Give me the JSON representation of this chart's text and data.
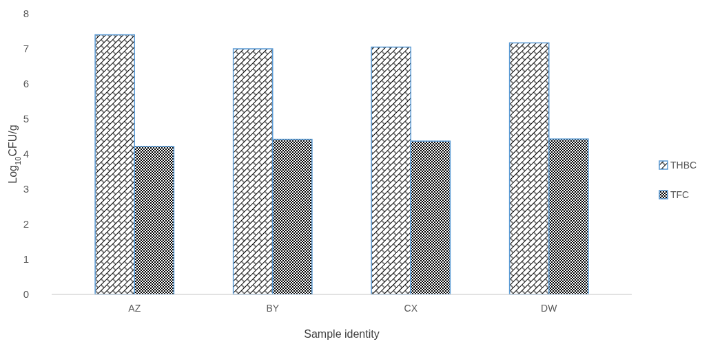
{
  "chart_data": {
    "type": "bar",
    "xlabel": "Sample identity",
    "ylabel": "Log$_{10}$CFU/g",
    "categories": [
      "AZ",
      "BY",
      "CX",
      "DW"
    ],
    "series": [
      {
        "name": "THBC",
        "values": [
          7.4,
          7.0,
          7.05,
          7.17
        ]
      },
      {
        "name": "TFC",
        "values": [
          4.22,
          4.42,
          4.37,
          4.43
        ]
      }
    ],
    "ylim": [
      0,
      8
    ],
    "yticks": [
      0,
      1,
      2,
      3,
      4,
      5,
      6,
      7,
      8
    ],
    "grid": false,
    "legend": "right"
  }
}
